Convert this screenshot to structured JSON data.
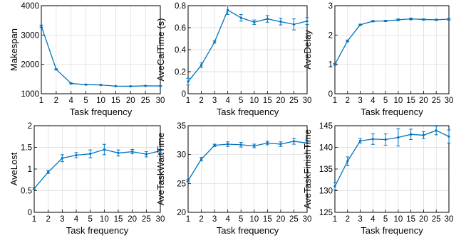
{
  "colors": {
    "series": "#0072BD",
    "grid": "#d9d9d9",
    "axis": "#000000"
  },
  "chart_data": [
    {
      "type": "line",
      "xlabel": "Task frequency",
      "ylabel": "Makespan",
      "categories": [
        "1",
        "2",
        "4",
        "5",
        "10",
        "15",
        "20",
        "25",
        "30"
      ],
      "ylim": [
        1000,
        4000
      ],
      "yticks": [
        1000,
        2000,
        3000,
        4000
      ],
      "grid": true,
      "series": [
        {
          "values": [
            3300,
            1830,
            1350,
            1310,
            1300,
            1260,
            1255,
            1270,
            1265
          ],
          "errors": [
            40,
            20,
            15,
            10,
            10,
            8,
            8,
            8,
            8
          ]
        }
      ]
    },
    {
      "type": "line",
      "xlabel": "Task frequency",
      "ylabel": "AveCalTime (s)",
      "categories": [
        "1",
        "2",
        "3",
        "4",
        "5",
        "10",
        "15",
        "20",
        "25",
        "30"
      ],
      "ylim": [
        0,
        0.8
      ],
      "yticks": [
        0,
        0.2,
        0.4,
        0.6,
        0.8
      ],
      "grid": true,
      "series": [
        {
          "values": [
            0.11,
            0.26,
            0.47,
            0.76,
            0.69,
            0.65,
            0.68,
            0.655,
            0.63,
            0.66
          ],
          "errors": [
            0.03,
            0.02,
            0.01,
            0.04,
            0.03,
            0.02,
            0.03,
            0.03,
            0.05,
            0.03
          ]
        }
      ]
    },
    {
      "type": "line",
      "xlabel": "Task frequency",
      "ylabel": "AveDelay",
      "categories": [
        "1",
        "2",
        "3",
        "4",
        "5",
        "10",
        "15",
        "20",
        "25",
        "30"
      ],
      "ylim": [
        0,
        3
      ],
      "yticks": [
        0,
        1,
        2,
        3
      ],
      "grid": true,
      "series": [
        {
          "values": [
            1.0,
            1.8,
            2.35,
            2.47,
            2.48,
            2.52,
            2.55,
            2.53,
            2.52,
            2.54
          ],
          "errors": [
            0.03,
            0.03,
            0.02,
            0.02,
            0.02,
            0.03,
            0.03,
            0.02,
            0.02,
            0.03
          ]
        }
      ]
    },
    {
      "type": "line",
      "xlabel": "Task frequency",
      "ylabel": "AveLost",
      "categories": [
        "1",
        "2",
        "3",
        "4",
        "5",
        "10",
        "15",
        "20",
        "25",
        "30"
      ],
      "ylim": [
        0,
        2
      ],
      "yticks": [
        0,
        0.5,
        1,
        1.5,
        2
      ],
      "grid": true,
      "series": [
        {
          "values": [
            0.55,
            0.93,
            1.25,
            1.32,
            1.35,
            1.45,
            1.37,
            1.4,
            1.34,
            1.42
          ],
          "errors": [
            0.02,
            0.03,
            0.08,
            0.06,
            0.09,
            0.12,
            0.07,
            0.05,
            0.06,
            0.04
          ]
        }
      ]
    },
    {
      "type": "line",
      "xlabel": "Task frequency",
      "ylabel": "AveTaskWaitTime",
      "categories": [
        "1",
        "2",
        "3",
        "4",
        "5",
        "10",
        "15",
        "20",
        "25",
        "30"
      ],
      "ylim": [
        20,
        35
      ],
      "yticks": [
        20,
        25,
        30,
        35
      ],
      "grid": true,
      "series": [
        {
          "values": [
            25.5,
            29.2,
            31.6,
            31.8,
            31.7,
            31.5,
            32.0,
            31.8,
            32.3,
            32.0
          ],
          "errors": [
            0.2,
            0.3,
            0.2,
            0.4,
            0.4,
            0.3,
            0.3,
            0.4,
            0.5,
            0.4
          ]
        }
      ]
    },
    {
      "type": "line",
      "xlabel": "Task frequency",
      "ylabel": "AveTaskFinishTime",
      "categories": [
        "1",
        "2",
        "3",
        "4",
        "5",
        "10",
        "15",
        "20",
        "25",
        "30"
      ],
      "ylim": [
        125,
        145
      ],
      "yticks": [
        125,
        130,
        135,
        140,
        145
      ],
      "grid": true,
      "series": [
        {
          "values": [
            131.0,
            136.8,
            141.5,
            141.9,
            141.8,
            142.3,
            143.0,
            142.8,
            143.9,
            142.5
          ],
          "errors": [
            0.8,
            1.0,
            0.5,
            1.2,
            1.3,
            2.0,
            1.2,
            0.8,
            1.0,
            1.5
          ]
        }
      ]
    }
  ]
}
